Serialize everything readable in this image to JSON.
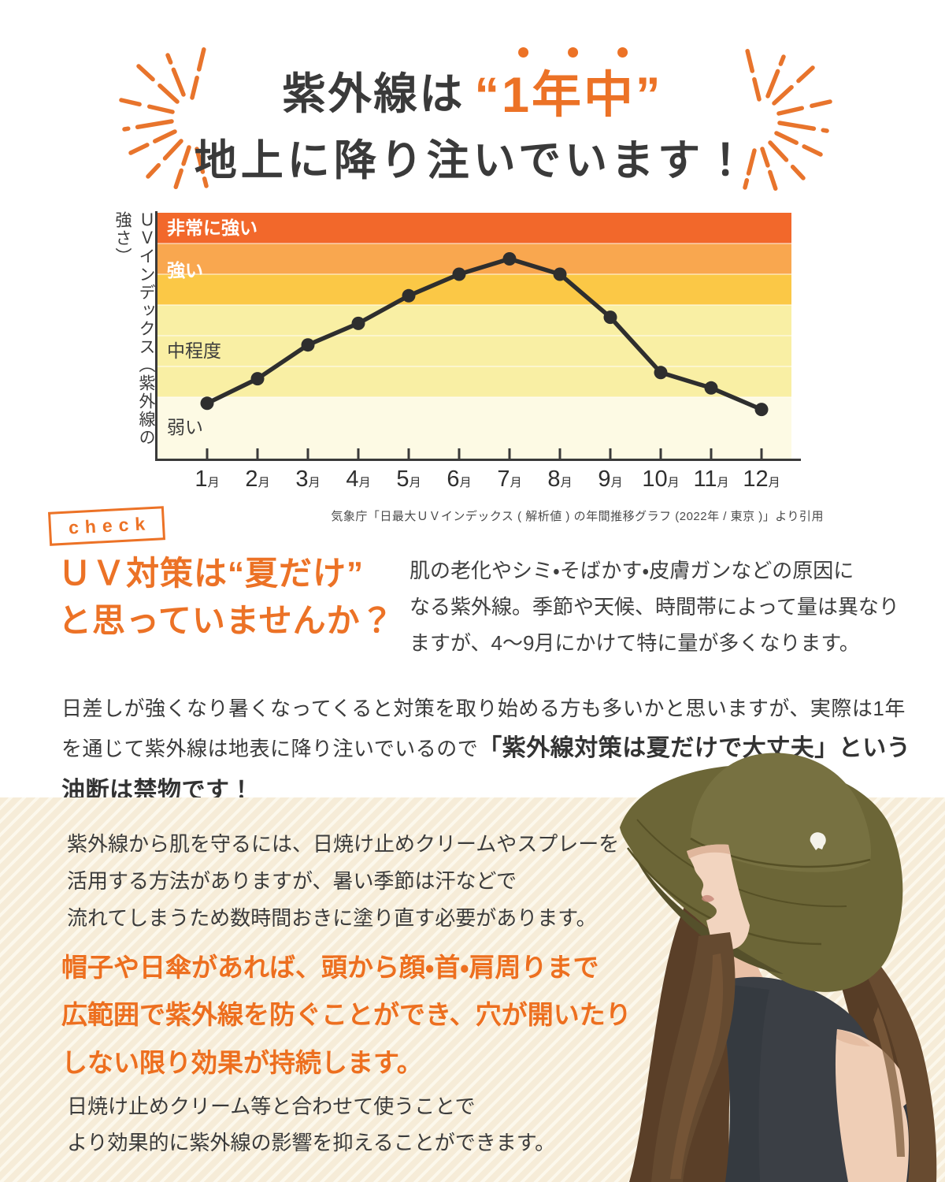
{
  "colors": {
    "accent_orange": "#ec7226",
    "highlight_orange": "#ed6f1f",
    "text_dark": "#3b3b3b",
    "stripe_base": "#f6ecd8",
    "stripe_light": "#fcf8ec"
  },
  "header": {
    "line1_prefix": "紫外線は",
    "line1_highlight": "“1年中”",
    "line2": "地上に降り注いでいます！"
  },
  "chart_data": {
    "type": "line",
    "title": "",
    "ylabel": "ＵＶインデックス（紫外線の強さ）",
    "xlabel": "",
    "categories": [
      "1月",
      "2月",
      "3月",
      "4月",
      "5月",
      "6月",
      "7月",
      "8月",
      "9月",
      "10月",
      "11月",
      "12月"
    ],
    "x_numbers": [
      "1",
      "2",
      "3",
      "4",
      "5",
      "6",
      "7",
      "8",
      "9",
      "10",
      "11",
      "12"
    ],
    "x_suffix": "月",
    "values": [
      1.8,
      2.6,
      3.7,
      4.4,
      5.3,
      6.0,
      6.5,
      6.0,
      4.6,
      2.8,
      2.3,
      1.6
    ],
    "ylim": [
      0,
      8
    ],
    "grid": false,
    "legend": "none",
    "line_color": "#2e2e2e",
    "bands": [
      {
        "label": "非常に強い",
        "from": 7,
        "to": 8,
        "color": "#f2682b",
        "label_color": "#ffffff",
        "label_bold": true,
        "label_v": 7.5
      },
      {
        "label": "強い",
        "from": 6,
        "to": 7,
        "color": "#f9a74f",
        "label_color": "#ffffff",
        "label_bold": true,
        "label_v": 6.1
      },
      {
        "label": "",
        "from": 5,
        "to": 6,
        "color": "#fbc846",
        "label_color": "",
        "label_bold": false,
        "label_v": 5.5
      },
      {
        "label": "中程度",
        "from": 2,
        "to": 5,
        "color": "#f9efa4",
        "label_color": "#3c3c3c",
        "label_bold": false,
        "label_v": 3.5
      },
      {
        "label": "弱い",
        "from": 0,
        "to": 2,
        "color": "#fdfae4",
        "label_color": "#3c3c3c",
        "label_bold": false,
        "label_v": 1.0
      }
    ]
  },
  "citation": "気象庁「日最大ＵＶインデックス ( 解析値 ) の年間推移グラフ (2022年 / 東京 )」より引用",
  "check_section": {
    "badge_label": "check",
    "heading": "ＵＶ対策は“夏だけ”\nと思っていませんか？",
    "paragraph": "肌の老化やシミ・そばかす・皮膚ガンなどの原因に\nなる紫外線。季節や天候、時間帯によって量は異なり\nますが、4〜9月にかけて特に量が多くなります。"
  },
  "mid_paragraph": {
    "normal": "日差しが強くなり暑くなってくると対策を取り始める方も多いかと思いますが、実際は1年を通じて紫外線は地表に降り注いでいるので",
    "bold": "「紫外線対策は夏だけで大丈夫」という油断は禁物です！"
  },
  "uv_protection_section": {
    "paragraph1": "紫外線から肌を守るには、日焼け止めクリームやスプレーを\n活用する方法がありますが、暑い季節は汗などで\n流れてしまうため数時間おきに塗り直す必要があります。",
    "highlight": "帽子や日傘があれば、頭から顔・首・肩周りまで\n広範囲で紫外線を防ぐことができ、穴が開いたり\nしない限り効果が持続します。",
    "paragraph2": "日焼け止めクリーム等と合わせて使うことで\nより効果的に紫外線の影響を抑えることができます。"
  }
}
